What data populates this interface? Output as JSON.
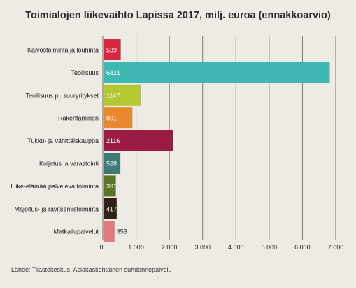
{
  "chart_data": {
    "type": "bar",
    "orientation": "horizontal",
    "title": "Toimialojen liikevaihto Lapissa 2017, milj. euroa (ennakkoarvio)",
    "categories": [
      "Kaivostoiminta ja louhinta",
      "Teollisuus",
      "Teollisuus pl. suuryritykset",
      "Rakentaminen",
      "Tukku- ja vähittäiskauppa",
      "Kuljetus ja varastointi",
      "Liike-elämää palveleva toiminta",
      "Majoitus- ja ravitsemistoiminta",
      "Matkailupalvelut"
    ],
    "values": [
      539,
      6821,
      1147,
      891,
      2116,
      528,
      391,
      417,
      353
    ],
    "value_labels": [
      "539",
      "6821",
      "1147",
      "891",
      "2116",
      "528",
      "391",
      "417",
      "353"
    ],
    "colors": [
      "#d6283f",
      "#3fb8b4",
      "#b5c834",
      "#e8892f",
      "#9a1c44",
      "#3f7a78",
      "#5c7428",
      "#2e2216",
      "#e07a80"
    ],
    "xlim": [
      0,
      7000
    ],
    "xticks": [
      0,
      1000,
      2000,
      3000,
      4000,
      5000,
      6000,
      7000
    ],
    "xtick_labels": [
      "0",
      "1 000",
      "2 000",
      "3 000",
      "4 000",
      "5 000",
      "6 000",
      "7 000"
    ],
    "grid": true,
    "xlabel": "",
    "ylabel": "",
    "legend": "none"
  },
  "source": "Lähde: Tilastokeskus, Asiakaskohtainen suhdannepalvelu"
}
